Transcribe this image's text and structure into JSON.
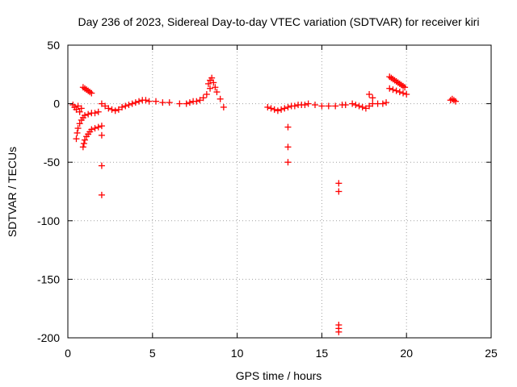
{
  "chart_data": {
    "type": "scatter",
    "title": "Day 236 of 2023, Sidereal Day-to-day VTEC variation (SDTVAR) for receiver kiri",
    "xlabel": "GPS time / hours",
    "ylabel": "SDTVAR / TECUs",
    "xlim": [
      0,
      25
    ],
    "ylim": [
      -200,
      50
    ],
    "xticks": [
      0,
      5,
      10,
      15,
      20,
      25
    ],
    "xtick_labels": [
      "0",
      "5",
      "10",
      "15",
      "20",
      "25"
    ],
    "yticks": [
      50,
      0,
      -50,
      -100,
      -150,
      -200
    ],
    "ytick_labels": [
      "50",
      "0",
      "-50",
      "-100",
      "-150",
      "-200"
    ],
    "grid": true,
    "marker": "plus",
    "color": "#ff0000",
    "series": [
      {
        "name": "SDTVAR",
        "points": [
          [
            0.3,
            -1
          ],
          [
            0.4,
            -3
          ],
          [
            0.5,
            -5
          ],
          [
            0.6,
            -2
          ],
          [
            0.7,
            -7
          ],
          [
            0.8,
            -4
          ],
          [
            0.5,
            -30
          ],
          [
            0.55,
            -25
          ],
          [
            0.6,
            -21
          ],
          [
            0.7,
            -17
          ],
          [
            0.8,
            -14
          ],
          [
            0.9,
            -12
          ],
          [
            1.0,
            -10
          ],
          [
            1.2,
            -9
          ],
          [
            1.4,
            -8
          ],
          [
            1.6,
            -8
          ],
          [
            1.8,
            -7
          ],
          [
            0.9,
            -37
          ],
          [
            0.95,
            -34
          ],
          [
            1.0,
            -31
          ],
          [
            1.1,
            -28
          ],
          [
            1.2,
            -26
          ],
          [
            1.3,
            -24
          ],
          [
            1.4,
            -22
          ],
          [
            1.6,
            -21
          ],
          [
            1.8,
            -20
          ],
          [
            2.0,
            -19
          ],
          [
            0.9,
            14
          ],
          [
            1.0,
            13
          ],
          [
            1.1,
            12
          ],
          [
            1.2,
            11
          ],
          [
            1.3,
            10
          ],
          [
            1.4,
            9
          ],
          [
            2.0,
            -27
          ],
          [
            2.0,
            -53
          ],
          [
            2.0,
            -78
          ],
          [
            2.0,
            0
          ],
          [
            2.2,
            -2
          ],
          [
            2.4,
            -4
          ],
          [
            2.6,
            -5
          ],
          [
            2.8,
            -6
          ],
          [
            3.0,
            -5
          ],
          [
            3.2,
            -3
          ],
          [
            3.4,
            -2
          ],
          [
            3.6,
            -1
          ],
          [
            3.8,
            0
          ],
          [
            4.0,
            1
          ],
          [
            4.2,
            2
          ],
          [
            4.4,
            3
          ],
          [
            4.6,
            3
          ],
          [
            4.8,
            2
          ],
          [
            5.2,
            2
          ],
          [
            5.6,
            1
          ],
          [
            6.0,
            1
          ],
          [
            6.6,
            0
          ],
          [
            7.0,
            0
          ],
          [
            7.2,
            1
          ],
          [
            7.4,
            2
          ],
          [
            7.6,
            2
          ],
          [
            7.8,
            3
          ],
          [
            8.0,
            5
          ],
          [
            8.2,
            8
          ],
          [
            8.4,
            13
          ],
          [
            8.3,
            17
          ],
          [
            8.4,
            20
          ],
          [
            8.5,
            22
          ],
          [
            8.6,
            18
          ],
          [
            8.7,
            14
          ],
          [
            8.8,
            10
          ],
          [
            9.0,
            4
          ],
          [
            9.2,
            -3
          ],
          [
            11.8,
            -3
          ],
          [
            12.0,
            -4
          ],
          [
            12.2,
            -5
          ],
          [
            12.4,
            -6
          ],
          [
            12.6,
            -5
          ],
          [
            12.8,
            -4
          ],
          [
            13.0,
            -3
          ],
          [
            13.2,
            -2
          ],
          [
            13.4,
            -2
          ],
          [
            13.6,
            -1
          ],
          [
            13.8,
            -1
          ],
          [
            14.0,
            -1
          ],
          [
            14.2,
            0
          ],
          [
            14.6,
            -1
          ],
          [
            15.0,
            -2
          ],
          [
            15.4,
            -2
          ],
          [
            15.8,
            -2
          ],
          [
            13.0,
            -20
          ],
          [
            13.0,
            -37
          ],
          [
            13.0,
            -50
          ],
          [
            16.0,
            -68
          ],
          [
            16.0,
            -75
          ],
          [
            16.0,
            -189
          ],
          [
            16.0,
            -192
          ],
          [
            16.0,
            -195
          ],
          [
            16.2,
            -1
          ],
          [
            16.4,
            -1
          ],
          [
            16.8,
            0
          ],
          [
            17.0,
            -1
          ],
          [
            17.2,
            -2
          ],
          [
            17.4,
            -3
          ],
          [
            17.6,
            -4
          ],
          [
            17.8,
            -2
          ],
          [
            18.0,
            0
          ],
          [
            17.8,
            8
          ],
          [
            18.0,
            5
          ],
          [
            18.3,
            0
          ],
          [
            18.6,
            0
          ],
          [
            18.8,
            1
          ],
          [
            19.0,
            23
          ],
          [
            19.1,
            22
          ],
          [
            19.2,
            21
          ],
          [
            19.3,
            20
          ],
          [
            19.4,
            19
          ],
          [
            19.5,
            18
          ],
          [
            19.6,
            17
          ],
          [
            19.7,
            16
          ],
          [
            19.8,
            15
          ],
          [
            19.9,
            14
          ],
          [
            19.0,
            13
          ],
          [
            19.2,
            12
          ],
          [
            19.4,
            11
          ],
          [
            19.6,
            10
          ],
          [
            19.8,
            9
          ],
          [
            20.0,
            8
          ],
          [
            22.6,
            3
          ],
          [
            22.7,
            4
          ],
          [
            22.8,
            3
          ],
          [
            22.9,
            2
          ]
        ]
      }
    ]
  }
}
